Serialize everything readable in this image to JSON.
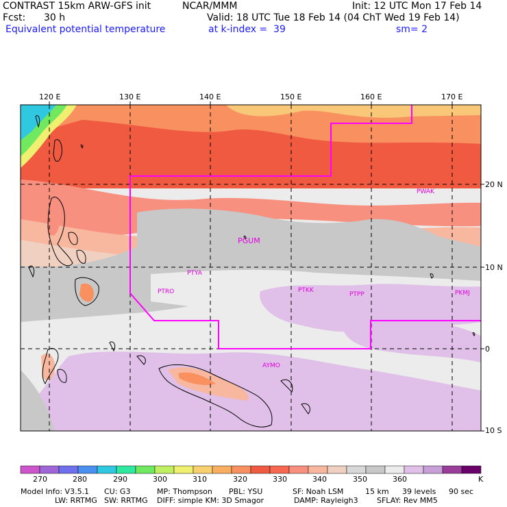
{
  "header": {
    "title": "CONTRAST 15km ARW-GFS init",
    "org": "NCAR/MMM",
    "init": "Init: 12 UTC Mon 17 Feb 14",
    "fcst_label": "Fcst:",
    "fcst_value": "30 h",
    "valid": "Valid: 18 UTC Tue 18 Feb 14 (04 ChT Wed 19 Feb 14)",
    "field": "Equivalent potential temperature",
    "level": "at k-index =  39",
    "smooth": "sm= 2"
  },
  "map": {
    "lon_labels": [
      "120 E",
      "130 E",
      "140 E",
      "150 E",
      "160 E",
      "170 E"
    ],
    "lat_labels": [
      "20 N",
      "10 N",
      "0",
      "10 S"
    ],
    "stations": [
      "PWAK",
      "PGUM",
      "PTYA",
      "PTRO",
      "PTKK",
      "PTPP",
      "PKMJ",
      "AYMO"
    ]
  },
  "legend": {
    "colors": [
      "#cc55cc",
      "#a066d8",
      "#7070ee",
      "#4a90f0",
      "#30c8e0",
      "#30e8a0",
      "#70e860",
      "#c0f060",
      "#f0f070",
      "#f8d070",
      "#f8b060",
      "#f89060",
      "#f05a40",
      "#f86850",
      "#f89080",
      "#f8b8a0",
      "#f0d0c0",
      "#d8d8d8",
      "#c8c8c8",
      "#ececec",
      "#e0c0e8",
      "#c8a0d8",
      "#9a3c9a",
      "#6a006a"
    ],
    "labels": [
      "270",
      "280",
      "290",
      "300",
      "310",
      "320",
      "330",
      "340",
      "350",
      "360"
    ],
    "unit": "K"
  },
  "model_info": {
    "line1": [
      "Model Info: V3.5.1",
      "CU: G3",
      "MP: Thompson",
      "PBL: YSU",
      "SF: Noah LSM",
      "15 km",
      "39 levels",
      "90 sec"
    ],
    "line2": [
      "LW: RRTMG",
      "SW: RRTMG",
      "DIFF: simple KM: 3D Smagor",
      "DAMP: Rayleigh3",
      "SFLAY: Rev MM5"
    ]
  }
}
